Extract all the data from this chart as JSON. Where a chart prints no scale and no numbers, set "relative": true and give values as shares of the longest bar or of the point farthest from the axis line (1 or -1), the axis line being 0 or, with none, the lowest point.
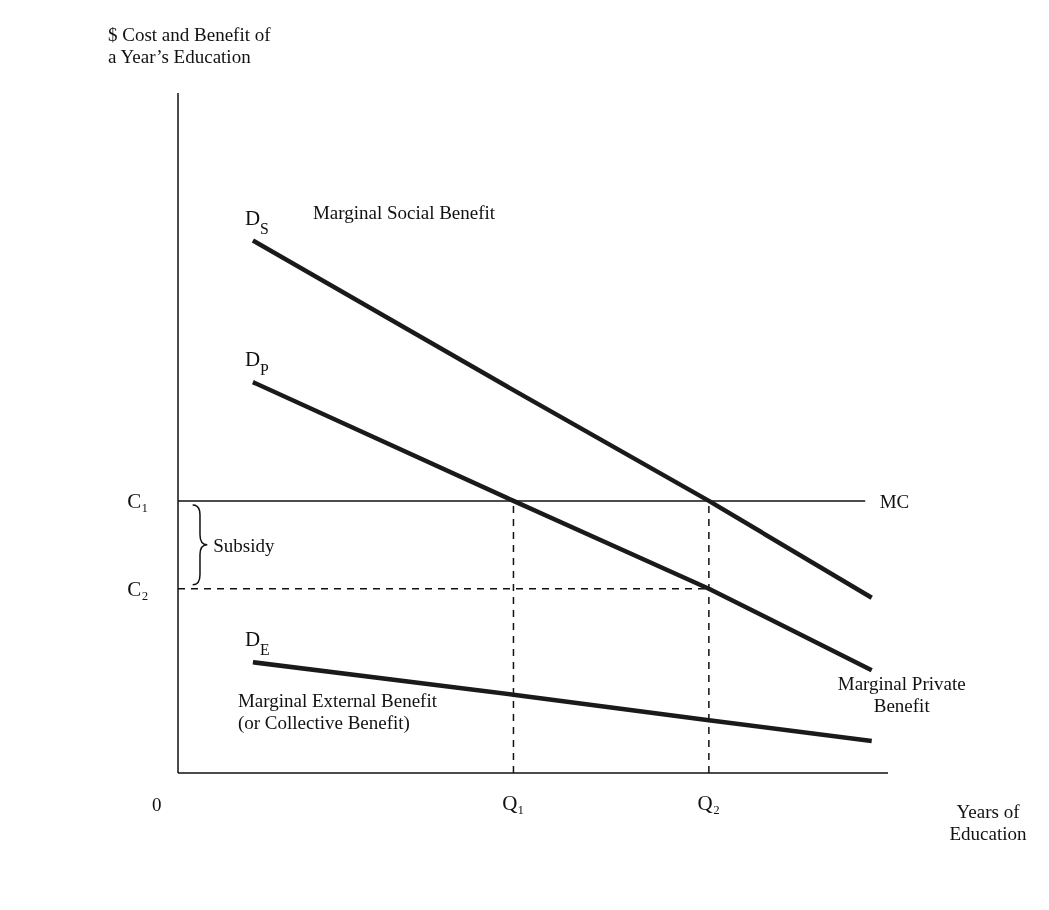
{
  "chart_data": {
    "type": "line",
    "relative": true,
    "xlabel": "Years of Education",
    "categories": [
      null,
      null,
      null,
      null,
      null,
      null,
      null,
      null,
      "Q₁",
      null,
      null,
      null,
      null,
      null,
      "Q₂",
      null,
      null,
      null,
      null,
      null
    ],
    "series": [
      {
        "name": "Marginal Social Benefit",
        "color": "#1a1a1a",
        "values": [
          1,
          null,
          null,
          null,
          null,
          null,
          null,
          null,
          0.719,
          null,
          null,
          null,
          null,
          null,
          0.511,
          null,
          null,
          null,
          null,
          0.329
        ]
      },
      {
        "name": "Marginal Private Benefit",
        "color": "#1a1a1a",
        "values": [
          0.734,
          null,
          null,
          null,
          null,
          null,
          null,
          null,
          0.511,
          null,
          null,
          null,
          null,
          null,
          0.346,
          null,
          null,
          null,
          null,
          0.193
        ]
      },
      {
        "name": "Marginal External Benefit (or Collective Benefit)",
        "color": "#1a1a1a",
        "values": [
          0.208,
          null,
          null,
          null,
          null,
          null,
          null,
          null,
          0.147,
          null,
          null,
          null,
          null,
          null,
          0.099,
          null,
          null,
          null,
          null,
          0.06
        ]
      }
    ],
    "ref_lines": [
      {
        "axis": "y",
        "value": 0.511,
        "label": "C₁",
        "line_style": "solid"
      },
      {
        "axis": "y",
        "value": 0.346,
        "label": "C₂",
        "line_style": "dashed"
      },
      {
        "axis": "x",
        "value": "Q₁",
        "line_style": "dashed"
      },
      {
        "axis": "x",
        "value": "Q₂",
        "line_style": "dashed"
      }
    ],
    "annotations": [
      "$ Cost and Benefit of a Year’s Education",
      "D$_{S}$",
      "D$_{P}$",
      "D$_{E}$",
      "MC",
      "0",
      "Subsidy"
    ],
    "marker": "none",
    "line_style": "solid"
  }
}
